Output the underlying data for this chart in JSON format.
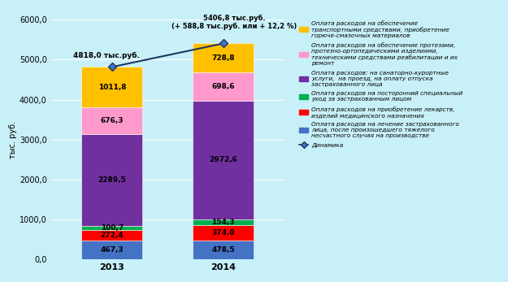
{
  "categories": [
    "2013",
    "2014"
  ],
  "segments": [
    {
      "label": "Оплата расходов на лечение застрахованного\nлица, после произошедшего тяжелого\nнесчастного случая на производстве",
      "values": [
        467.3,
        478.5
      ],
      "color": "#4472C4"
    },
    {
      "label": "Оплата расходов на приобретение лекарств,\nизделий медицинского назначения",
      "values": [
        272.4,
        374.0
      ],
      "color": "#FF0000"
    },
    {
      "label": "Оплата расходов на посторонний специальный\nуход за застрахованным лицом",
      "values": [
        100.7,
        154.3
      ],
      "color": "#00B050"
    },
    {
      "label": "Оплата расходов: на санаторно-курортные\nуслуги,  на проезд, на оплату отпуска\nзастрахованного лица",
      "values": [
        2289.5,
        2972.6
      ],
      "color": "#7030A0"
    },
    {
      "label": "Оплата расходов на обеспечение протезами,\nпротезно-ортопедическими изделиями,\nтехническими средствами реабилитации и их\nремонт",
      "values": [
        676.3,
        698.6
      ],
      "color": "#FF99CC"
    },
    {
      "label": "Оплата расходов на обеспечение\nтранспортными средствами, приобретение\nгорюче-смазочных материалов",
      "values": [
        1011.8,
        728.8
      ],
      "color": "#FFC000"
    }
  ],
  "totals": [
    4818.0,
    5406.8
  ],
  "ylabel": "тыс. руб.",
  "ylim": [
    0,
    6000
  ],
  "yticks": [
    0.0,
    1000.0,
    2000.0,
    3000.0,
    4000.0,
    5000.0,
    6000.0
  ],
  "background_color": "#C8F0F8",
  "grid_color": "#FFFFFF",
  "bar_positions": [
    0.0,
    1.0
  ],
  "bar_width": 0.55
}
